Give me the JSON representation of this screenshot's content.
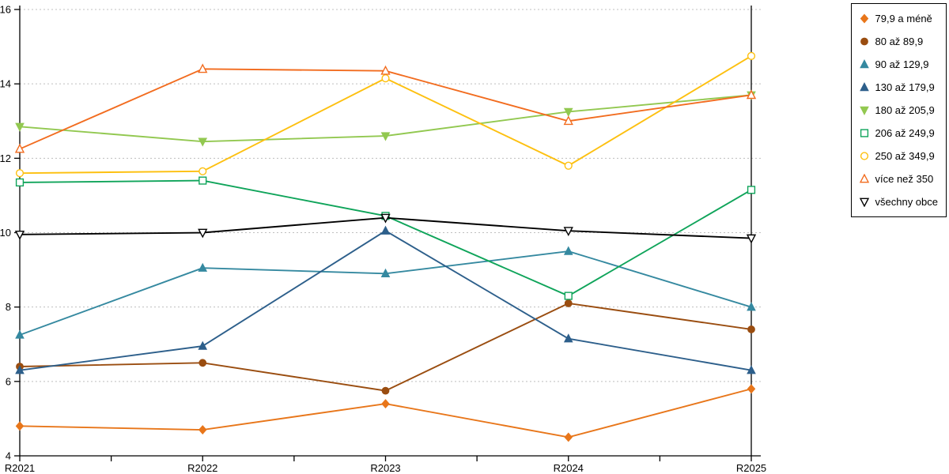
{
  "chart_data": {
    "type": "line",
    "title": "",
    "xlabel": "",
    "ylabel": "",
    "x_labels": [
      "R2021",
      "R2022",
      "R2023",
      "R2024",
      "R2025"
    ],
    "y_ticks": [
      4,
      6,
      8,
      10,
      12,
      14,
      16
    ],
    "ylim": [
      4,
      16
    ],
    "grid": "horizontal-dotted",
    "legend_position": "top-right",
    "axis_color": "#000000",
    "grid_color": "#bfbfbf",
    "series": [
      {
        "name": "79,9 a méně",
        "marker": "diamond",
        "style": "filled",
        "color": "#e8761a",
        "values": [
          4.8,
          4.7,
          5.4,
          4.5,
          5.8
        ]
      },
      {
        "name": "80 až 89,9",
        "marker": "circle",
        "style": "filled",
        "color": "#9a4d10",
        "values": [
          6.4,
          6.5,
          5.75,
          8.1,
          7.4
        ]
      },
      {
        "name": "90 až 129,9",
        "marker": "triangle-up",
        "style": "filled",
        "color": "#3589a0",
        "values": [
          7.25,
          9.05,
          8.9,
          9.5,
          8.0
        ]
      },
      {
        "name": "130 až 179,9",
        "marker": "triangle-up",
        "style": "filled",
        "color": "#2d5f8b",
        "values": [
          6.3,
          6.95,
          10.05,
          7.15,
          6.3
        ]
      },
      {
        "name": "180 až 205,9",
        "marker": "triangle-down",
        "style": "filled",
        "color": "#92c850",
        "values": [
          12.85,
          12.45,
          12.6,
          13.25,
          13.7
        ]
      },
      {
        "name": "206 až 249,9",
        "marker": "square",
        "style": "open",
        "color": "#0fa45a",
        "values": [
          11.35,
          11.4,
          10.45,
          8.3,
          11.15
        ]
      },
      {
        "name": "250 až 349,9",
        "marker": "circle",
        "style": "open",
        "color": "#fdc010",
        "values": [
          11.6,
          11.65,
          14.15,
          11.8,
          14.75
        ]
      },
      {
        "name": "více než 350",
        "marker": "triangle-up",
        "style": "open",
        "color": "#f26c1f",
        "values": [
          12.25,
          14.4,
          14.35,
          13.0,
          13.7
        ]
      },
      {
        "name": "všechny obce",
        "marker": "triangle-down",
        "style": "open",
        "color": "#000000",
        "values": [
          9.95,
          10.0,
          10.4,
          10.05,
          9.85
        ]
      }
    ]
  }
}
